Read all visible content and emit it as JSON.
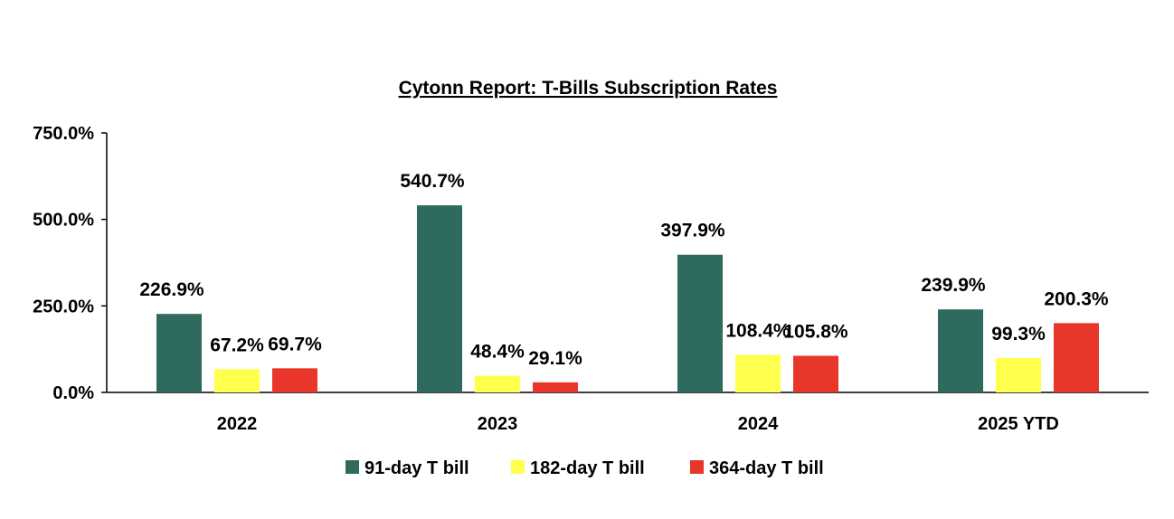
{
  "chart_data": {
    "type": "bar",
    "title": "Cytonn Report: T-Bills Subscription Rates",
    "categories": [
      "2022",
      "2023",
      "2024",
      "2025 YTD"
    ],
    "series": [
      {
        "name": "91-day T bill",
        "color": "#2e6b5e",
        "values": [
          226.9,
          540.7,
          397.9,
          239.9
        ],
        "labels": [
          "226.9%",
          "540.7%",
          "397.9%",
          "239.9%"
        ]
      },
      {
        "name": "182-day T bill",
        "color": "#ffff4d",
        "values": [
          67.2,
          48.4,
          108.4,
          99.3
        ],
        "labels": [
          "67.2%",
          "48.4%",
          "108.4%",
          "99.3%"
        ]
      },
      {
        "name": "364-day T bill",
        "color": "#e8362a",
        "values": [
          69.7,
          29.1,
          105.8,
          200.3
        ],
        "labels": [
          "69.7%",
          "29.1%",
          "105.8%",
          "200.3%"
        ]
      }
    ],
    "ylim": [
      0,
      750
    ],
    "yticks": [
      0,
      250,
      500,
      750
    ],
    "ytick_labels": [
      "0.0%",
      "250.0%",
      "500.0%",
      "750.0%"
    ],
    "xlabel": "",
    "ylabel": "",
    "grid": false,
    "legend": "bottom"
  }
}
